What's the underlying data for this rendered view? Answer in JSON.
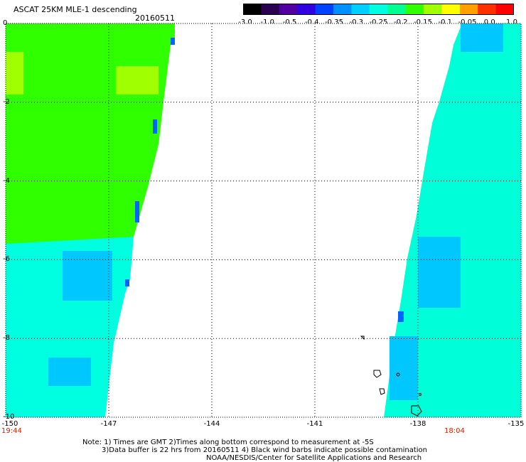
{
  "header": {
    "title": "ASCAT 25KM MLE-1 descending",
    "date": "20160511"
  },
  "colorbar": {
    "tick_labels": [
      "-3.0",
      "-1.0",
      "-0.5",
      "-0.4",
      "-0.35",
      "-0.3",
      "-0.25",
      "-0.2",
      "-0.15",
      "-0.1",
      "-0.05",
      "0.0",
      "1.0"
    ],
    "colors": [
      "#000000",
      "#2a0050",
      "#5000a0",
      "#3000e0",
      "#0040ff",
      "#0090ff",
      "#00d0ff",
      "#00ffe0",
      "#00ff90",
      "#30ff00",
      "#a0ff00",
      "#ffff00",
      "#ffa000",
      "#ff3000",
      "#ff0000"
    ]
  },
  "axes": {
    "y_labels": [
      "0",
      "-2",
      "-4",
      "-6",
      "-8",
      "-10"
    ],
    "x_labels": [
      "-150",
      "-147",
      "-144",
      "-141",
      "-138",
      "-135"
    ],
    "lat_range": [
      -10,
      0
    ],
    "lon_range": [
      -150,
      -135
    ],
    "grid": "dotted"
  },
  "times": {
    "left": "19:44",
    "right": "18:04"
  },
  "swaths": {
    "left_colors": {
      "main": "#00ffe0",
      "green": "#30ff00",
      "lime": "#a0ff00",
      "blue": "#00c8ff"
    },
    "right_colors": {
      "main": "#00ffd8",
      "blue": "#00c8ff"
    }
  },
  "footer": {
    "line1": "Note: 1) Times are GMT 2)Times along bottom correspond to measurement at -5S",
    "line2": "3)Data buffer is 22 hrs from 20160511 4) Black wind barbs indicate possible contamination",
    "line3": "NOAA/NESDIS/Center for Satellite Applications and Research"
  }
}
